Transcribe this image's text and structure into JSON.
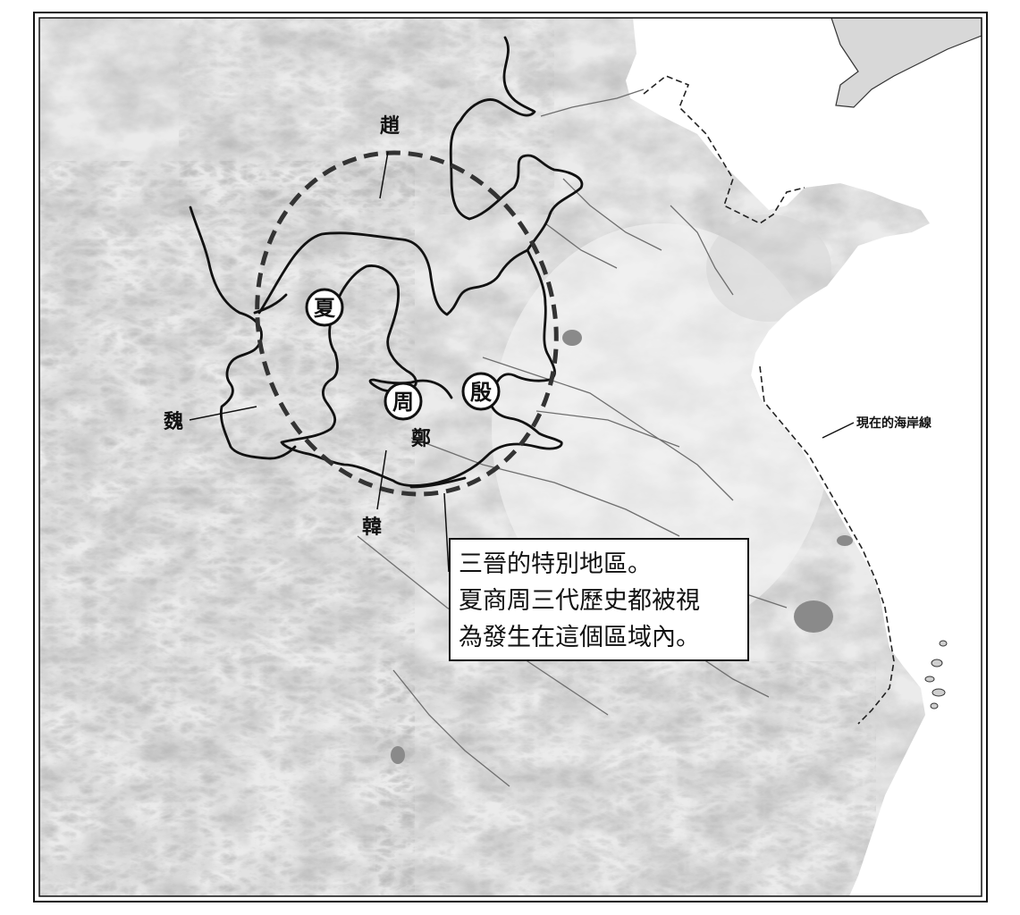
{
  "map": {
    "states": {
      "zhao": "趙",
      "wei": "魏",
      "han": "韓",
      "zheng": "鄭"
    },
    "capitals": {
      "xia": "夏",
      "zhou": "周",
      "yin": "殷"
    },
    "coastline_label": "現在的海岸線",
    "callout": {
      "line1": "三晉的特別地區。",
      "line2": "夏商周三代歷史都被視",
      "line3": "為發生在這個區域內。"
    },
    "colors": {
      "border": "#111111",
      "terrain_light": "#e9e9e9",
      "terrain_mid": "#bdbdbd",
      "terrain_dark": "#8a8a8a",
      "sea": "#ffffff",
      "dashed_ellipse": "#333333"
    }
  }
}
